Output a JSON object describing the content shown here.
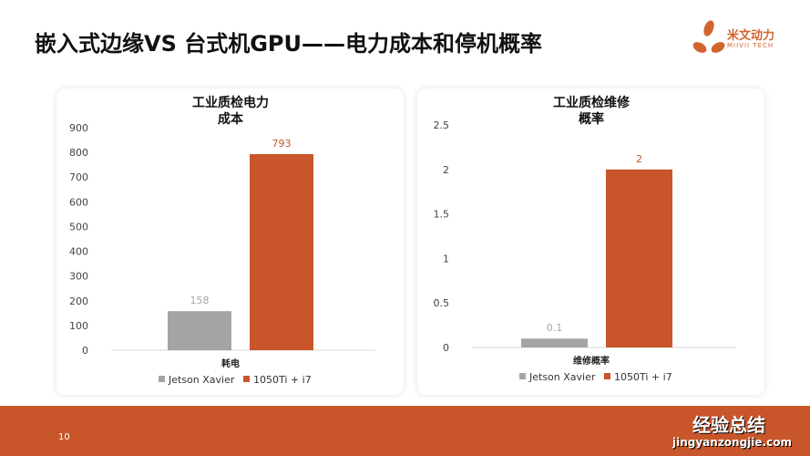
{
  "title": "嵌入式边缘VS 台式机GPU——电力成本和停机概率",
  "logo": {
    "name": "米文动力",
    "sub": "MIIVII TECH"
  },
  "page_number": "10",
  "watermark": {
    "text": "经验总结",
    "url": "jingyanzongjie.com"
  },
  "colors": {
    "grey": "#a5a5a5",
    "orange": "#c8562a"
  },
  "chart_data": [
    {
      "type": "bar",
      "title": "工业质检电力成本",
      "title_lines": [
        "工业质检电力",
        "成本"
      ],
      "categories": [
        "耗电"
      ],
      "series": [
        {
          "name": "Jetson Xavier",
          "values": [
            158
          ],
          "labels": [
            "158"
          ]
        },
        {
          "name": "1050Ti + i7",
          "values": [
            793
          ],
          "labels": [
            "793"
          ]
        }
      ],
      "ylim": [
        0,
        900
      ],
      "yticks": [
        "0",
        "100",
        "200",
        "300",
        "400",
        "500",
        "600",
        "700",
        "800",
        "900"
      ],
      "ytick_values": [
        0,
        100,
        200,
        300,
        400,
        500,
        600,
        700,
        800,
        900
      ],
      "grid": false,
      "legend": "bottom"
    },
    {
      "type": "bar",
      "title": "工业质检维修概率",
      "title_lines": [
        "工业质检维修",
        "概率"
      ],
      "categories": [
        "维修概率"
      ],
      "series": [
        {
          "name": "Jetson Xavier",
          "values": [
            0.1
          ],
          "labels": [
            "0.1"
          ]
        },
        {
          "name": "1050Ti + i7",
          "values": [
            2
          ],
          "labels": [
            "2"
          ]
        }
      ],
      "ylim": [
        0,
        2.5
      ],
      "yticks": [
        "0",
        "0.5",
        "1",
        "1.5",
        "2",
        "2.5"
      ],
      "ytick_values": [
        0,
        0.5,
        1,
        1.5,
        2,
        2.5
      ],
      "grid": false,
      "legend": "bottom"
    }
  ]
}
